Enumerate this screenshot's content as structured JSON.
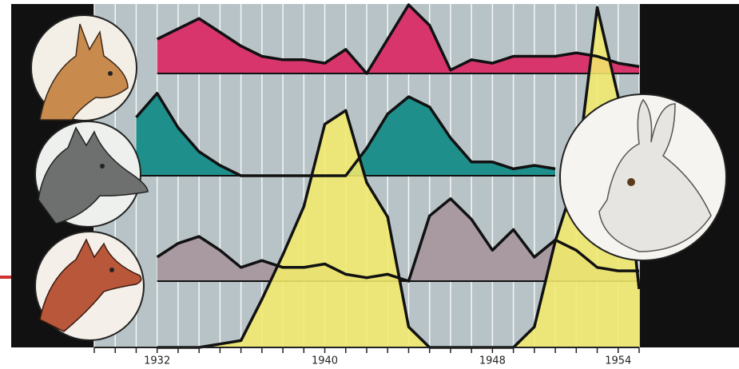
{
  "chart_data": {
    "type": "area",
    "x": [
      1929,
      1930,
      1931,
      1932,
      1933,
      1934,
      1935,
      1936,
      1937,
      1938,
      1939,
      1940,
      1941,
      1942,
      1943,
      1944,
      1945,
      1946,
      1947,
      1948,
      1949,
      1950,
      1951,
      1952,
      1953,
      1954,
      1955
    ],
    "xlim": [
      1929,
      1955
    ],
    "xticks": [
      1932,
      1940,
      1948,
      1954
    ],
    "ylim": [
      0,
      100
    ],
    "series": [
      {
        "color": "#d8356d",
        "values": [
          null,
          null,
          null,
          10,
          13,
          16,
          12,
          8,
          5,
          4,
          4,
          3,
          7,
          0,
          10,
          20,
          14,
          1,
          4,
          3,
          5,
          5,
          5,
          6,
          5,
          3,
          2
        ]
      },
      {
        "color": "#1f8f8b",
        "values": [
          null,
          null,
          17,
          24,
          14,
          7,
          3,
          0,
          0,
          0,
          0,
          0,
          0,
          8,
          18,
          23,
          20,
          11,
          4,
          4,
          2,
          3,
          2,
          null,
          null,
          null,
          null
        ]
      },
      {
        "color": "#a99aa2",
        "values": [
          null,
          null,
          null,
          7,
          11,
          13,
          9,
          4,
          6,
          4,
          4,
          5,
          2,
          1,
          2,
          0,
          19,
          24,
          18,
          9,
          15,
          7,
          12,
          9,
          4,
          3,
          3
        ]
      },
      {
        "color": "#f3ea6c",
        "values": [
          null,
          null,
          null,
          0,
          0,
          0,
          1,
          2,
          14,
          27,
          41,
          65,
          69,
          48,
          38,
          6,
          0,
          0,
          0,
          0,
          0,
          6,
          31,
          50,
          99,
          73,
          17
        ]
      }
    ]
  }
}
